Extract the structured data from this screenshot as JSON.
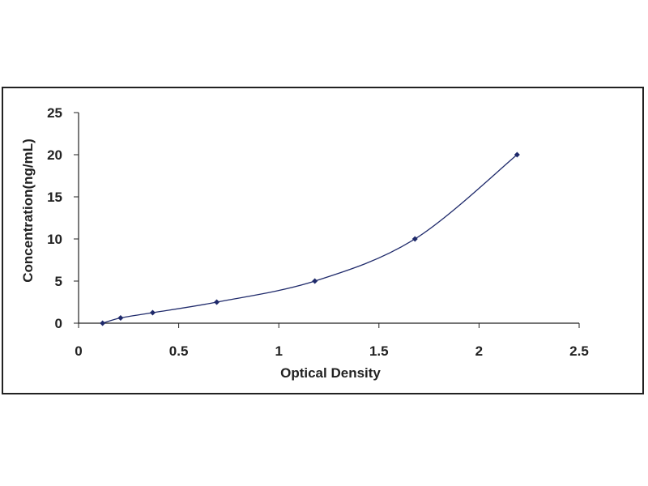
{
  "chart_data": {
    "type": "scatter",
    "title": "",
    "xlabel": "Optical Density",
    "ylabel": "Concentration(ng/mL)",
    "xlim": [
      0,
      2.5
    ],
    "ylim": [
      0,
      25
    ],
    "x_ticks": [
      "0",
      "0.5",
      "1",
      "1.5",
      "2",
      "2.5"
    ],
    "y_ticks": [
      "0",
      "5",
      "10",
      "15",
      "20",
      "25"
    ],
    "grid": false,
    "legend": "none",
    "series": [
      {
        "points": [
          {
            "x": 0.12,
            "y": 0.0
          },
          {
            "x": 0.21,
            "y": 0.625
          },
          {
            "x": 0.37,
            "y": 1.25
          },
          {
            "x": 0.69,
            "y": 2.5
          },
          {
            "x": 1.18,
            "y": 5
          },
          {
            "x": 1.68,
            "y": 10
          },
          {
            "x": 2.19,
            "y": 20
          }
        ],
        "fit_curve": true,
        "color": "#1f2a6b"
      }
    ],
    "colors": {
      "axis": "#222222",
      "series": "#1f2a6b",
      "frame": "#222222"
    }
  }
}
